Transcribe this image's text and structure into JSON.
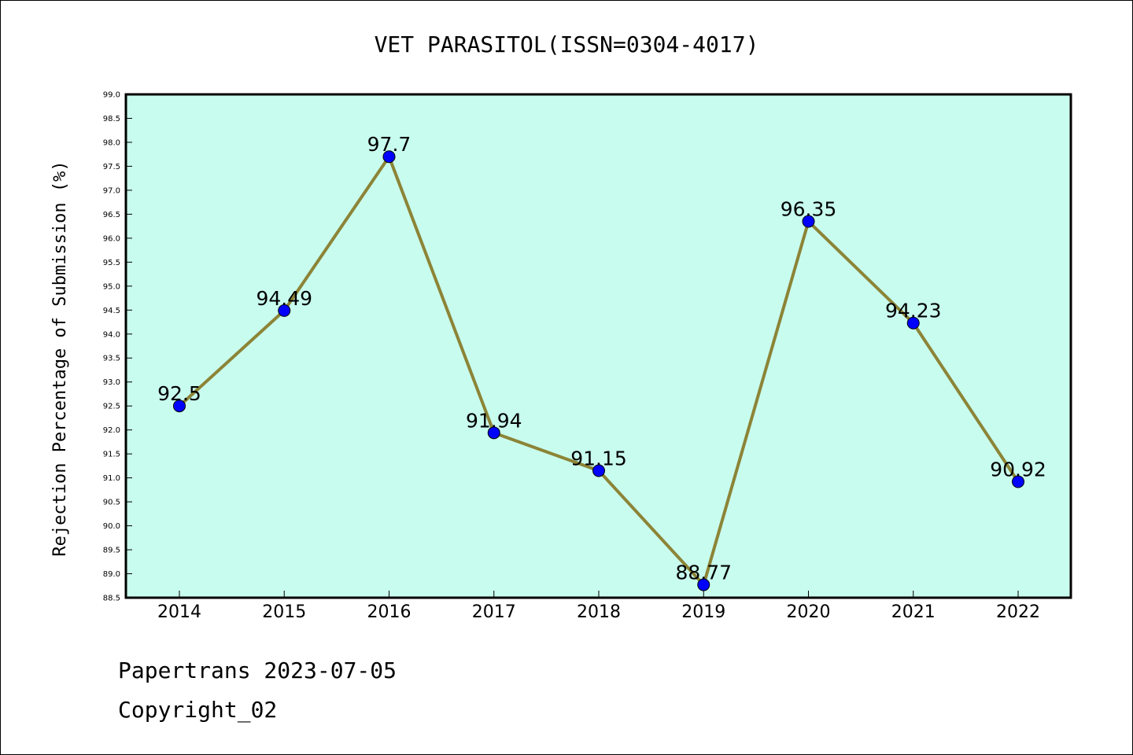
{
  "chart_data": {
    "type": "line",
    "title": "VET PARASITOL(ISSN=0304-4017)",
    "xlabel": "",
    "ylabel": "Rejection Percentage of Submission (%)",
    "categories": [
      "2014",
      "2015",
      "2016",
      "2017",
      "2018",
      "2019",
      "2020",
      "2021",
      "2022"
    ],
    "series": [
      {
        "values": [
          92.5,
          94.49,
          97.7,
          91.94,
          91.15,
          88.77,
          96.35,
          94.23,
          90.92
        ],
        "labels": [
          "92.5",
          "94.49",
          "97.7",
          "91.94",
          "91.15",
          "88.77",
          "96.35",
          "94.23",
          "90.92"
        ]
      }
    ],
    "ylim": [
      88.5,
      99.0
    ],
    "yticks": [
      "88.5",
      "89.0",
      "89.5",
      "90.0",
      "90.5",
      "91.0",
      "91.5",
      "92.0",
      "92.5",
      "93.0",
      "93.5",
      "94.0",
      "94.5",
      "95.0",
      "95.5",
      "96.0",
      "96.5",
      "97.0",
      "97.5",
      "98.0",
      "98.5",
      "99.0"
    ],
    "grid": false,
    "colors": {
      "plot_background": "#c8fcee",
      "line": "#8c8437",
      "marker": "#0000ff"
    }
  },
  "footer": {
    "line1": "Papertrans 2023-07-05",
    "line2": "Copyright_02"
  }
}
